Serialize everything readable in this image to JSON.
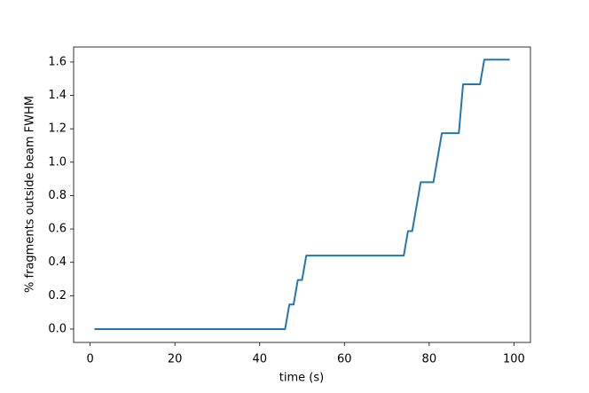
{
  "chart_data": {
    "type": "line",
    "x_label": "time (s)",
    "y_label": "% fragments outside beam FWHM",
    "x": [
      1,
      46,
      47,
      48,
      49,
      50,
      51,
      74,
      75,
      76,
      78,
      81,
      83,
      87,
      88,
      92,
      93,
      99
    ],
    "series": [
      {
        "color": "#1f77b4",
        "values": [
          0,
          0,
          0.147,
          0.147,
          0.294,
          0.294,
          0.44,
          0.44,
          0.587,
          0.587,
          0.88,
          0.88,
          1.174,
          1.174,
          1.467,
          1.467,
          1.614,
          1.614
        ]
      }
    ],
    "xlim": [
      -3.9,
      103.9
    ],
    "ylim": [
      -0.08,
      1.69
    ],
    "xticks": [
      0,
      20,
      40,
      60,
      80,
      100
    ],
    "yticks": [
      {
        "value": 0,
        "label": "0.0"
      },
      {
        "value": 0.2,
        "label": "0.2"
      },
      {
        "value": 0.4,
        "label": "0.4"
      },
      {
        "value": 0.6,
        "label": "0.6"
      },
      {
        "value": 0.8,
        "label": "0.8"
      },
      {
        "value": 1.0,
        "label": "1.0"
      },
      {
        "value": 1.2,
        "label": "1.2"
      },
      {
        "value": 1.4,
        "label": "1.4"
      },
      {
        "value": 1.6,
        "label": "1.6"
      }
    ],
    "grid": false
  }
}
